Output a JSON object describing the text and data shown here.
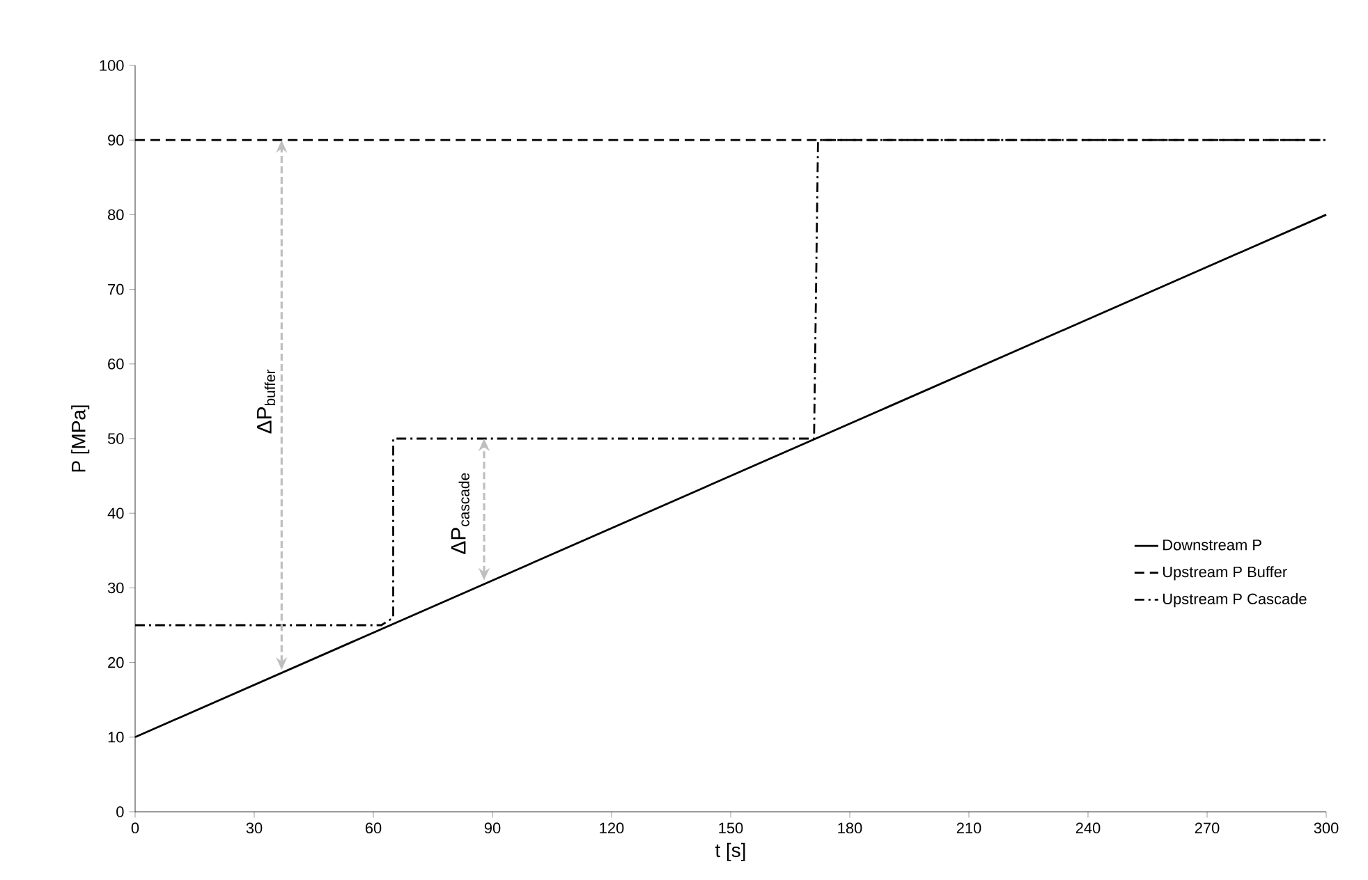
{
  "chart_data": {
    "type": "line",
    "xlabel": "t [s]",
    "ylabel": "P [MPa]",
    "xlim": [
      0,
      300
    ],
    "xticks": [
      0,
      30,
      60,
      90,
      120,
      150,
      180,
      210,
      240,
      270,
      300
    ],
    "ylim": [
      0,
      100
    ],
    "yticks": [
      0,
      10,
      20,
      30,
      40,
      50,
      60,
      70,
      80,
      90,
      100
    ],
    "grid": false,
    "legend": "right",
    "marker": "none",
    "series": [
      {
        "name": "Downstream P",
        "color": "#000000",
        "line_style": "solid",
        "x": [
          0,
          300
        ],
        "values": [
          10,
          80
        ]
      },
      {
        "name": "Upstream P Buffer",
        "color": "#000000",
        "line_style": "dashed",
        "x": [
          0,
          300
        ],
        "values": [
          90,
          90
        ]
      },
      {
        "name": "Upstream P Cascade",
        "color": "#000000",
        "line_style": "dashdot",
        "x": [
          0,
          62,
          65,
          65,
          171,
          172,
          300
        ],
        "values": [
          25,
          25,
          26,
          50,
          50,
          90,
          90
        ]
      }
    ],
    "annotations": [
      "ΔP$_{buffer}$",
      "ΔP$_{cascade}$"
    ]
  }
}
